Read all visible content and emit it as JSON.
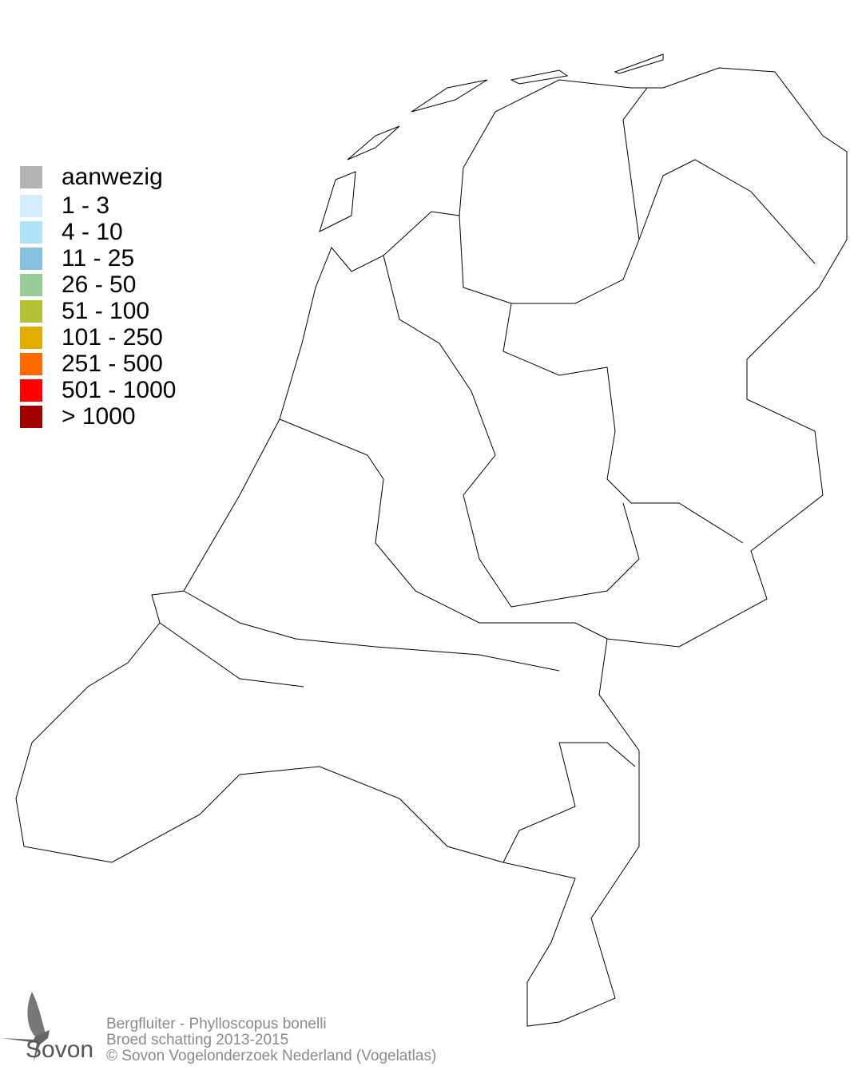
{
  "legend": {
    "items": [
      {
        "label": "aanwezig",
        "color": "#b3b3b3"
      },
      {
        "label": "1 - 3",
        "color": "#d4ecfb"
      },
      {
        "label": "4 - 10",
        "color": "#b0e2fa"
      },
      {
        "label": "11 - 25",
        "color": "#86c2e0"
      },
      {
        "label": "26 - 50",
        "color": "#98cc96"
      },
      {
        "label": "51 - 100",
        "color": "#b2c234"
      },
      {
        "label": "101 - 250",
        "color": "#e1ad00"
      },
      {
        "label": "251 - 500",
        "color": "#ff6a00"
      },
      {
        "label": "501 - 1000",
        "color": "#ff0000"
      },
      {
        "label": "> 1000",
        "color": "#a00000"
      }
    ]
  },
  "footer": {
    "line1": "Bergfluiter - Phylloscopus bonelli",
    "line2": "Broed schatting 2013-2015",
    "line3": "© Sovon Vogelonderzoek Nederland (Vogelatlas)"
  },
  "logo": {
    "text": "Sovon"
  },
  "map": {
    "region": "Netherlands",
    "outline_color": "#000000",
    "fill": "#ffffff"
  }
}
